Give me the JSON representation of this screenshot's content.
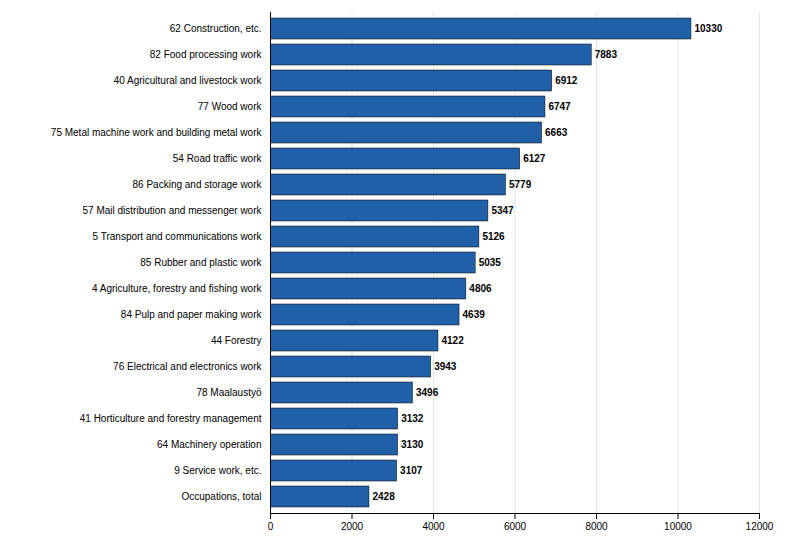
{
  "chart_data": {
    "type": "bar",
    "orientation": "horizontal",
    "categories": [
      "Occupations, total",
      "9 Service work, etc.",
      "64 Machinery operation",
      "41 Horticulture and forestry management",
      "78 Maalaustyö",
      "76 Electrical and electronics work",
      "44 Forestry",
      "84 Pulp and paper making work",
      "4 Agriculture, forestry and fishing work",
      "85 Rubber and plastic work",
      "5 Transport and communications work",
      "57 Mail distribution and messenger work",
      "86 Packing and storage work",
      "54 Road traffic work",
      "75 Metal machine work and building metal work",
      "77 Wood work",
      "40 Agricultural and livestock work",
      "82 Food processing work",
      "62 Construction, etc."
    ],
    "values": [
      2428,
      3107,
      3130,
      3132,
      3496,
      3943,
      4122,
      4639,
      4806,
      5035,
      5126,
      5347,
      5779,
      6127,
      6663,
      6747,
      6912,
      7883,
      10330
    ],
    "color": "#2060A8",
    "xlim": [
      0,
      12000
    ],
    "xticks": [
      0,
      2000,
      4000,
      6000,
      8000,
      10000,
      12000
    ],
    "grid": true,
    "data_labels": true
  }
}
